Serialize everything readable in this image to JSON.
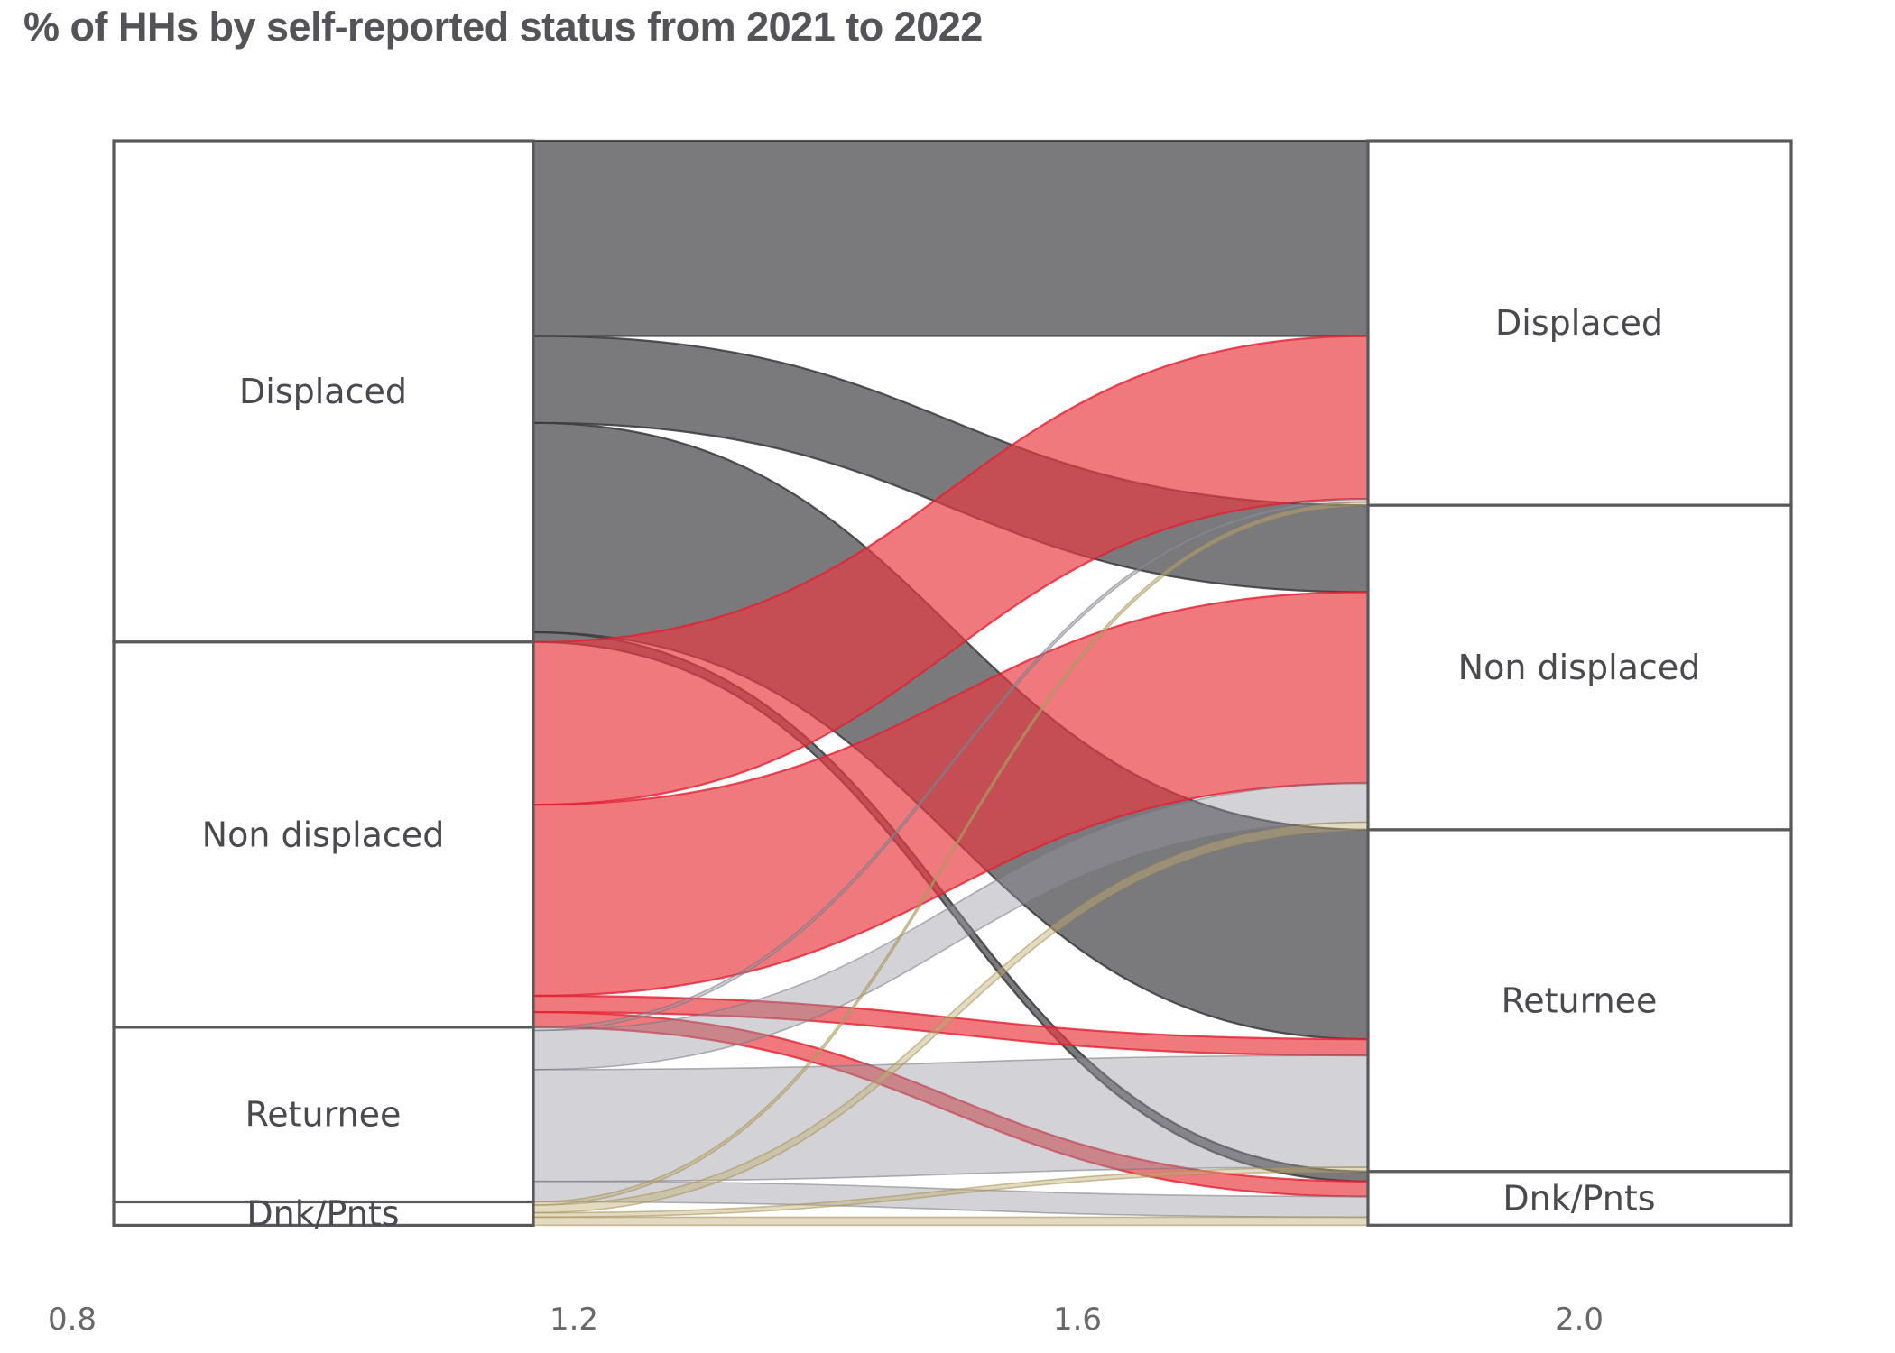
{
  "chart_data": {
    "type": "sankey",
    "title": "% of HHs by self-reported status from 2021 to 2022",
    "subtitle": "",
    "periods": [
      "2021",
      "2022"
    ],
    "categories": [
      "Displaced",
      "Non displaced",
      "Returnee",
      "Dnk/Pnts"
    ],
    "x_axis": {
      "ticks": [
        "0.8",
        "1.2",
        "1.6",
        "2.0"
      ],
      "range": [
        0.8,
        2.0
      ],
      "node_centers": [
        1.0,
        2.0
      ]
    },
    "units": "% of households",
    "flows": [
      {
        "from": "Displaced",
        "to": "Displaced",
        "value": 18.0
      },
      {
        "from": "Displaced",
        "to": "Non displaced",
        "value": 8.0
      },
      {
        "from": "Displaced",
        "to": "Returnee",
        "value": 19.3
      },
      {
        "from": "Displaced",
        "to": "Dnk/Pnts",
        "value": 0.9
      },
      {
        "from": "Non displaced",
        "to": "Displaced",
        "value": 15.0
      },
      {
        "from": "Non displaced",
        "to": "Non displaced",
        "value": 17.6
      },
      {
        "from": "Non displaced",
        "to": "Returnee",
        "value": 1.5
      },
      {
        "from": "Non displaced",
        "to": "Dnk/Pnts",
        "value": 1.4
      },
      {
        "from": "Returnee",
        "to": "Displaced",
        "value": 0.3
      },
      {
        "from": "Returnee",
        "to": "Non displaced",
        "value": 3.6
      },
      {
        "from": "Returnee",
        "to": "Returnee",
        "value": 10.3
      },
      {
        "from": "Returnee",
        "to": "Dnk/Pnts",
        "value": 1.9
      },
      {
        "from": "Dnk/Pnts",
        "to": "Displaced",
        "value": 0.3
      },
      {
        "from": "Dnk/Pnts",
        "to": "Non displaced",
        "value": 0.7
      },
      {
        "from": "Dnk/Pnts",
        "to": "Returnee",
        "value": 0.4
      },
      {
        "from": "Dnk/Pnts",
        "to": "Dnk/Pnts",
        "value": 0.75
      }
    ],
    "node_totals_2021": {
      "Displaced": 46.2,
      "Non displaced": 35.5,
      "Returnee": 16.1,
      "Dnk/Pnts": 2.15
    },
    "node_totals_2022": {
      "Displaced": 33.6,
      "Non displaced": 29.9,
      "Returnee": 31.5,
      "Dnk/Pnts": 4.95
    },
    "colors": {
      "flow_fills": {
        "Displaced": {
          "fill": "rgba(99,98,101,0.85)",
          "stroke": "rgba(58,57,61,0.85)"
        },
        "Non displaced": {
          "fill": "rgba(232,58,63,0.68)",
          "stroke": "rgba(228,33,50,0.8)"
        },
        "Returnee": {
          "fill": "rgba(150,150,160,0.42)",
          "stroke": "rgba(118,118,130,0.55)"
        },
        "Dnk/Pnts": {
          "fill": "rgba(192,174,120,0.45)",
          "stroke": "rgba(168,148,92,0.6)"
        }
      },
      "node_fill": "#ffffff",
      "node_border": "#59585b",
      "label_color": "#4a494e",
      "tick_color": "#68676a",
      "title_color": "#545357"
    }
  }
}
